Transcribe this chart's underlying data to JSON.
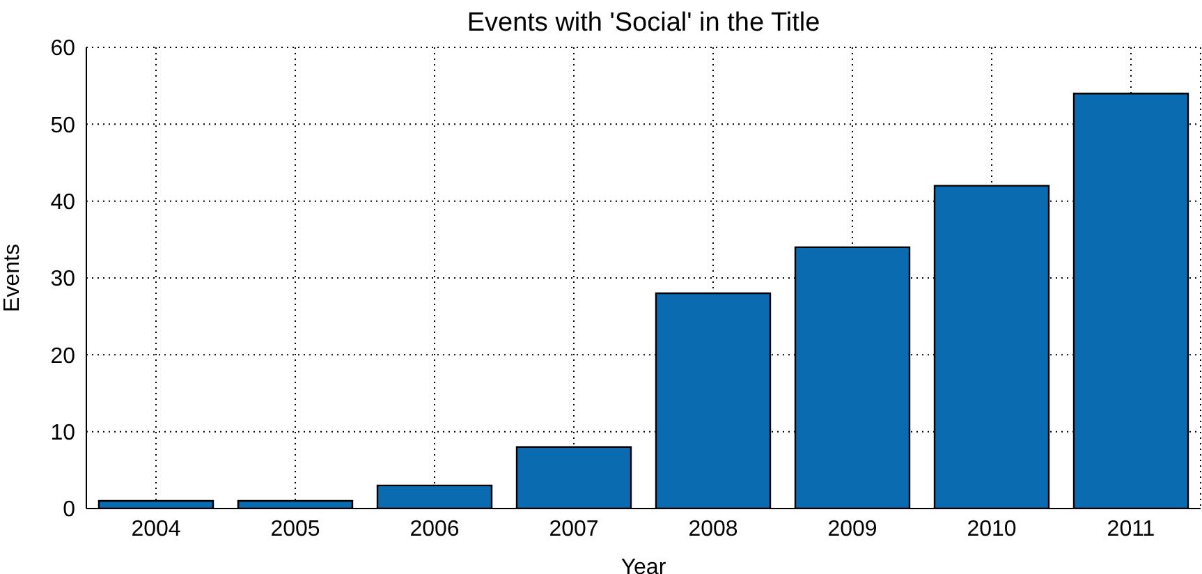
{
  "chart_data": {
    "type": "bar",
    "title": "Events with 'Social' in the Title",
    "xlabel": "Year",
    "ylabel": "Events",
    "categories": [
      "2004",
      "2005",
      "2006",
      "2007",
      "2008",
      "2009",
      "2010",
      "2011"
    ],
    "values": [
      1,
      1,
      3,
      8,
      28,
      34,
      42,
      54
    ],
    "color": "#0a6bb0",
    "ylim": [
      0,
      60
    ],
    "yticks": [
      0,
      10,
      20,
      30,
      40,
      50,
      60
    ],
    "grid": true
  }
}
